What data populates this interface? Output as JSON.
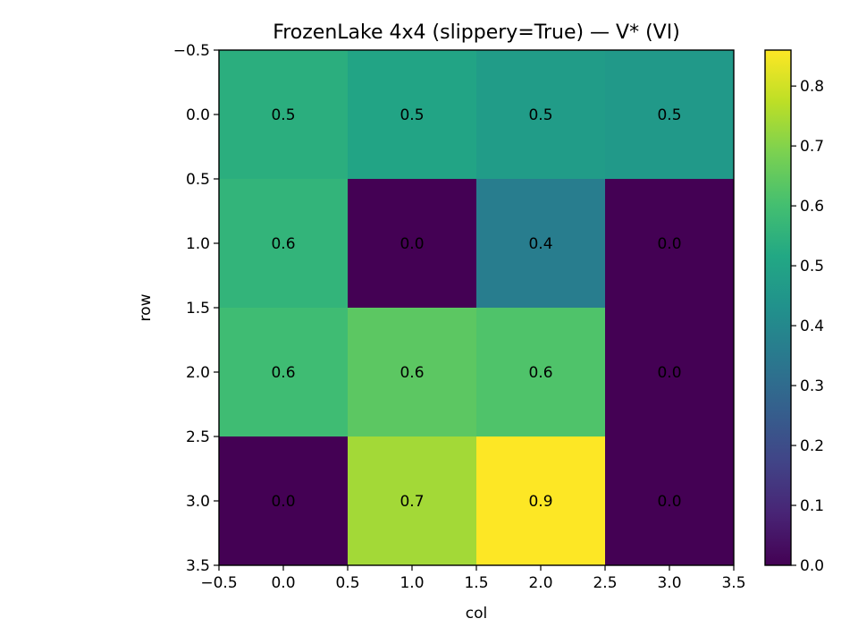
{
  "chart_data": {
    "type": "heatmap",
    "title": "FrozenLake 4x4 (slippery=True) — V* (VI)",
    "xlabel": "col",
    "ylabel": "row",
    "x_ticks": [
      "−0.5",
      "0.0",
      "0.5",
      "1.0",
      "1.5",
      "2.0",
      "2.5",
      "3.0",
      "3.5"
    ],
    "y_ticks": [
      "−0.5",
      "0.0",
      "0.5",
      "1.0",
      "1.5",
      "2.0",
      "2.5",
      "3.0",
      "3.5"
    ],
    "xlim": [
      -0.5,
      3.5
    ],
    "ylim": [
      3.5,
      -0.5
    ],
    "values": [
      [
        0.54,
        0.5,
        0.47,
        0.46
      ],
      [
        0.56,
        0.0,
        0.36,
        0.0
      ],
      [
        0.59,
        0.64,
        0.62,
        0.0
      ],
      [
        0.0,
        0.74,
        0.86,
        0.0
      ]
    ],
    "cell_labels": [
      [
        "0.5",
        "0.5",
        "0.5",
        "0.5"
      ],
      [
        "0.6",
        "0.0",
        "0.4",
        "0.0"
      ],
      [
        "0.6",
        "0.6",
        "0.6",
        "0.0"
      ],
      [
        "0.0",
        "0.7",
        "0.9",
        "0.0"
      ]
    ],
    "colormap": "viridis",
    "colorbar": {
      "vmin": 0.0,
      "vmax": 0.86,
      "ticks": [
        0.0,
        0.1,
        0.2,
        0.3,
        0.4,
        0.5,
        0.6,
        0.7,
        0.8
      ],
      "tick_labels": [
        "0.0",
        "0.1",
        "0.2",
        "0.3",
        "0.4",
        "0.5",
        "0.6",
        "0.7",
        "0.8"
      ]
    },
    "grid": false
  }
}
